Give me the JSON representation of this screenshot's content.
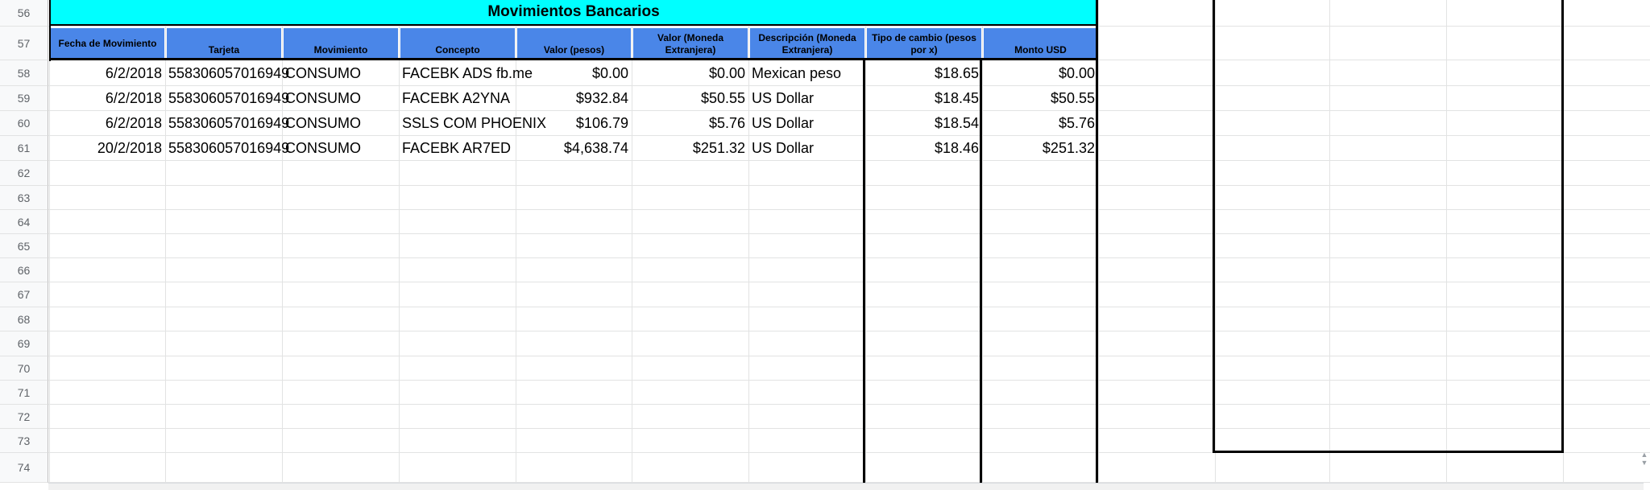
{
  "row_numbers": [
    "56",
    "57",
    "58",
    "59",
    "60",
    "61",
    "62",
    "63",
    "64",
    "65",
    "66",
    "67",
    "68",
    "69",
    "70",
    "71",
    "72",
    "73",
    "74"
  ],
  "table": {
    "title": "Movimientos Bancarios",
    "headers": [
      "Fecha de Movimiento",
      "Tarjeta",
      "Movimiento",
      "Concepto",
      "Valor (pesos)",
      "Valor (Moneda Extranjera)",
      "Descripción (Moneda Extranjera)",
      "Tipo de cambio (pesos por x)",
      "Monto USD"
    ],
    "rows": [
      [
        "6/2/2018",
        "558306057016949",
        "CONSUMO",
        "FACEBK ADS fb.me",
        "$0.00",
        "$0.00",
        "Mexican peso",
        "$18.65",
        "$0.00"
      ],
      [
        "6/2/2018",
        "558306057016949",
        "CONSUMO",
        "FACEBK A2YNA",
        "$932.84",
        "$50.55",
        "US Dollar",
        "$18.45",
        "$50.55"
      ],
      [
        "6/2/2018",
        "558306057016949",
        "CONSUMO",
        "SSLS COM PHOENIX",
        "$106.79",
        "$5.76",
        "US Dollar",
        "$18.54",
        "$5.76"
      ],
      [
        "20/2/2018",
        "558306057016949",
        "CONSUMO",
        "FACEBK AR7ED",
        "$4,638.74",
        "$251.32",
        "US Dollar",
        "$18.46",
        "$251.32"
      ]
    ]
  },
  "colors": {
    "title_bg": "#00ffff",
    "header_bg": "#4a86e8",
    "grid": "#e2e3e3",
    "border": "#000000"
  }
}
